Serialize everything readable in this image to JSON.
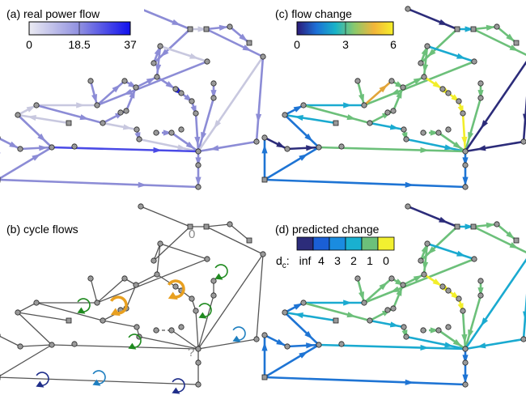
{
  "panels": {
    "a": {
      "title": "(a) real power flow",
      "ticks": [
        "0",
        "18.5",
        "37"
      ]
    },
    "b": {
      "title": "(b) cycle flows",
      "zero_label": "0",
      "question_label": "?"
    },
    "c": {
      "title": "(c) flow change",
      "ticks": [
        "0",
        "3",
        "6"
      ]
    },
    "d": {
      "title": "(d) predicted change",
      "dc_label": "d",
      "dc_sub": "c",
      "dc_colon": ":",
      "ticks": [
        "inf",
        "4",
        "3",
        "2",
        "1",
        "0"
      ]
    }
  },
  "colors": {
    "edge_gray": "#555555",
    "power_light": "#c8c8df",
    "power_mid": "#8c8cd6",
    "power_strong": "#2222ee",
    "change_navy": "#2c2c7a",
    "change_blue": "#1e74d4",
    "change_cyan": "#1aaad0",
    "change_green": "#6cc07a",
    "change_lime": "#b7d65a",
    "change_yellow": "#f2ee2a",
    "change_orange": "#e2a53a",
    "cycle_green": "#1f8a1f",
    "cycle_orange": "#e8a020",
    "cycle_blue": "#1f7fc0",
    "cycle_navy": "#1f2e8a"
  }
}
